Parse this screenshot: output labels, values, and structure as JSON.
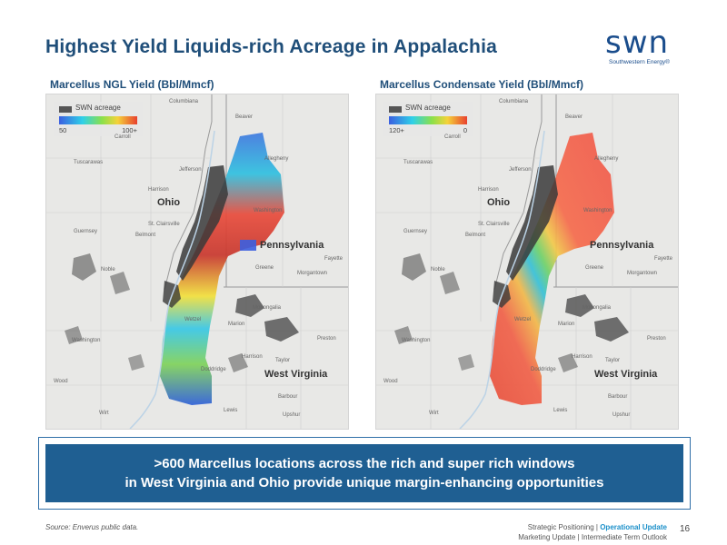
{
  "slide": {
    "title": "Highest Yield Liquids-rich Acreage in Appalachia",
    "page_number": "16"
  },
  "logo": {
    "mark": "swn",
    "subtitle": "Southwestern Energy®"
  },
  "maps": [
    {
      "title": "Marcellus NGL Yield (Bbl/Mmcf)",
      "legend": {
        "acreage_label": "SWN acreage",
        "min": "50",
        "max": "100+"
      },
      "places": [
        "Columbiana",
        "Beaver",
        "Carroll",
        "Tuscarawas",
        "Jefferson",
        "Harrison",
        "Allegheny",
        "Washington",
        "Guernsey",
        "Belmont",
        "Greene",
        "Monongalia",
        "Marion",
        "Wetzel",
        "Doddridge",
        "Harrison",
        "Taylor",
        "Barbour",
        "Upshur",
        "Lewis",
        "Wood",
        "Wirt",
        "Washington",
        "Noble",
        "St. Clairsville",
        "Morgantown",
        "Preston",
        "Fayette"
      ],
      "states": [
        "Ohio",
        "Pennsylvania",
        "West Virginia"
      ]
    },
    {
      "title": "Marcellus Condensate Yield (Bbl/Mmcf)",
      "legend": {
        "acreage_label": "SWN acreage",
        "min": "120+",
        "max": "0"
      },
      "places": [
        "Columbiana",
        "Beaver",
        "Carroll",
        "Tuscarawas",
        "Jefferson",
        "Harrison",
        "Allegheny",
        "Washington",
        "Guernsey",
        "Belmont",
        "Greene",
        "Monongalia",
        "Marion",
        "Wetzel",
        "Doddridge",
        "Harrison",
        "Taylor",
        "Barbour",
        "Upshur",
        "Lewis",
        "Wood",
        "Wirt",
        "Washington",
        "Noble",
        "St. Clairsville",
        "Morgantown",
        "Preston",
        "Fayette"
      ],
      "states": [
        "Ohio",
        "Pennsylvania",
        "West Virginia"
      ]
    }
  ],
  "banner": {
    "line1": ">600 Marcellus locations across the rich and super rich windows",
    "line2": "in West Virginia and Ohio provide unique margin-enhancing opportunities"
  },
  "footer": {
    "source": "Source: Enverus public data.",
    "nav_line1_a": "Strategic Positioning | ",
    "nav_line1_active": "Operational Update",
    "nav_line2": "Marketing Update | Intermediate Term Outlook"
  },
  "colors": {
    "title": "#1f4e79",
    "banner": "#1f5f92",
    "accent": "#1a8fc9",
    "acreage": "#555555"
  }
}
